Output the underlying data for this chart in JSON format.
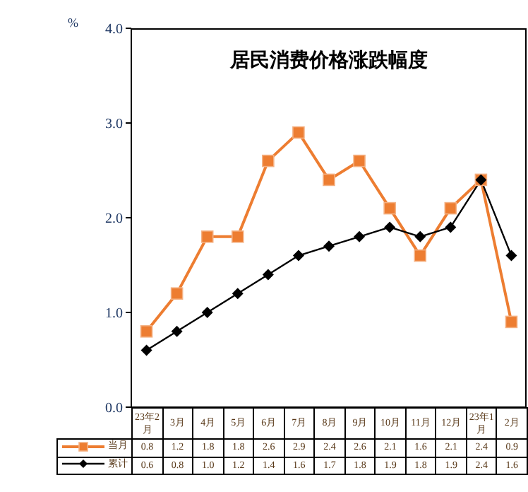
{
  "chart_data": {
    "type": "line",
    "title": "居民消费价格涨跌幅度",
    "ylabel": "%",
    "categories": [
      "23年2月",
      "3月",
      "4月",
      "5月",
      "6月",
      "7月",
      "8月",
      "9月",
      "10月",
      "11月",
      "12月",
      "23年1月",
      "2月"
    ],
    "series": [
      {
        "name": "当月",
        "color": "#ed7d31",
        "marker": "square",
        "values": [
          0.8,
          1.2,
          1.8,
          1.8,
          2.6,
          2.9,
          2.4,
          2.6,
          2.1,
          1.6,
          2.1,
          2.4,
          0.9
        ],
        "value_labels": [
          "0.8",
          "1.2",
          "1.8",
          "1.8",
          "2.6",
          "2.9",
          "2.4",
          "2.6",
          "2.1",
          "1.6",
          "2.1",
          "2.4",
          "0.9"
        ]
      },
      {
        "name": "累计",
        "color": "#000000",
        "marker": "diamond",
        "values": [
          0.6,
          0.8,
          1.0,
          1.2,
          1.4,
          1.6,
          1.7,
          1.8,
          1.9,
          1.8,
          1.9,
          2.4,
          1.6
        ],
        "value_labels": [
          "0.6",
          "0.8",
          "1.0",
          "1.2",
          "1.4",
          "1.6",
          "1.7",
          "1.8",
          "1.9",
          "1.8",
          "1.9",
          "2.4",
          "1.6"
        ]
      }
    ],
    "ylim": [
      0,
      4
    ],
    "yticks": [
      {
        "value": 0,
        "label": "0.0"
      },
      {
        "value": 1,
        "label": "1.0"
      },
      {
        "value": 2,
        "label": "2.0"
      },
      {
        "value": 3,
        "label": "3.0"
      },
      {
        "value": 4,
        "label": "4.0"
      }
    ],
    "grid": false,
    "legend": "bottom"
  }
}
